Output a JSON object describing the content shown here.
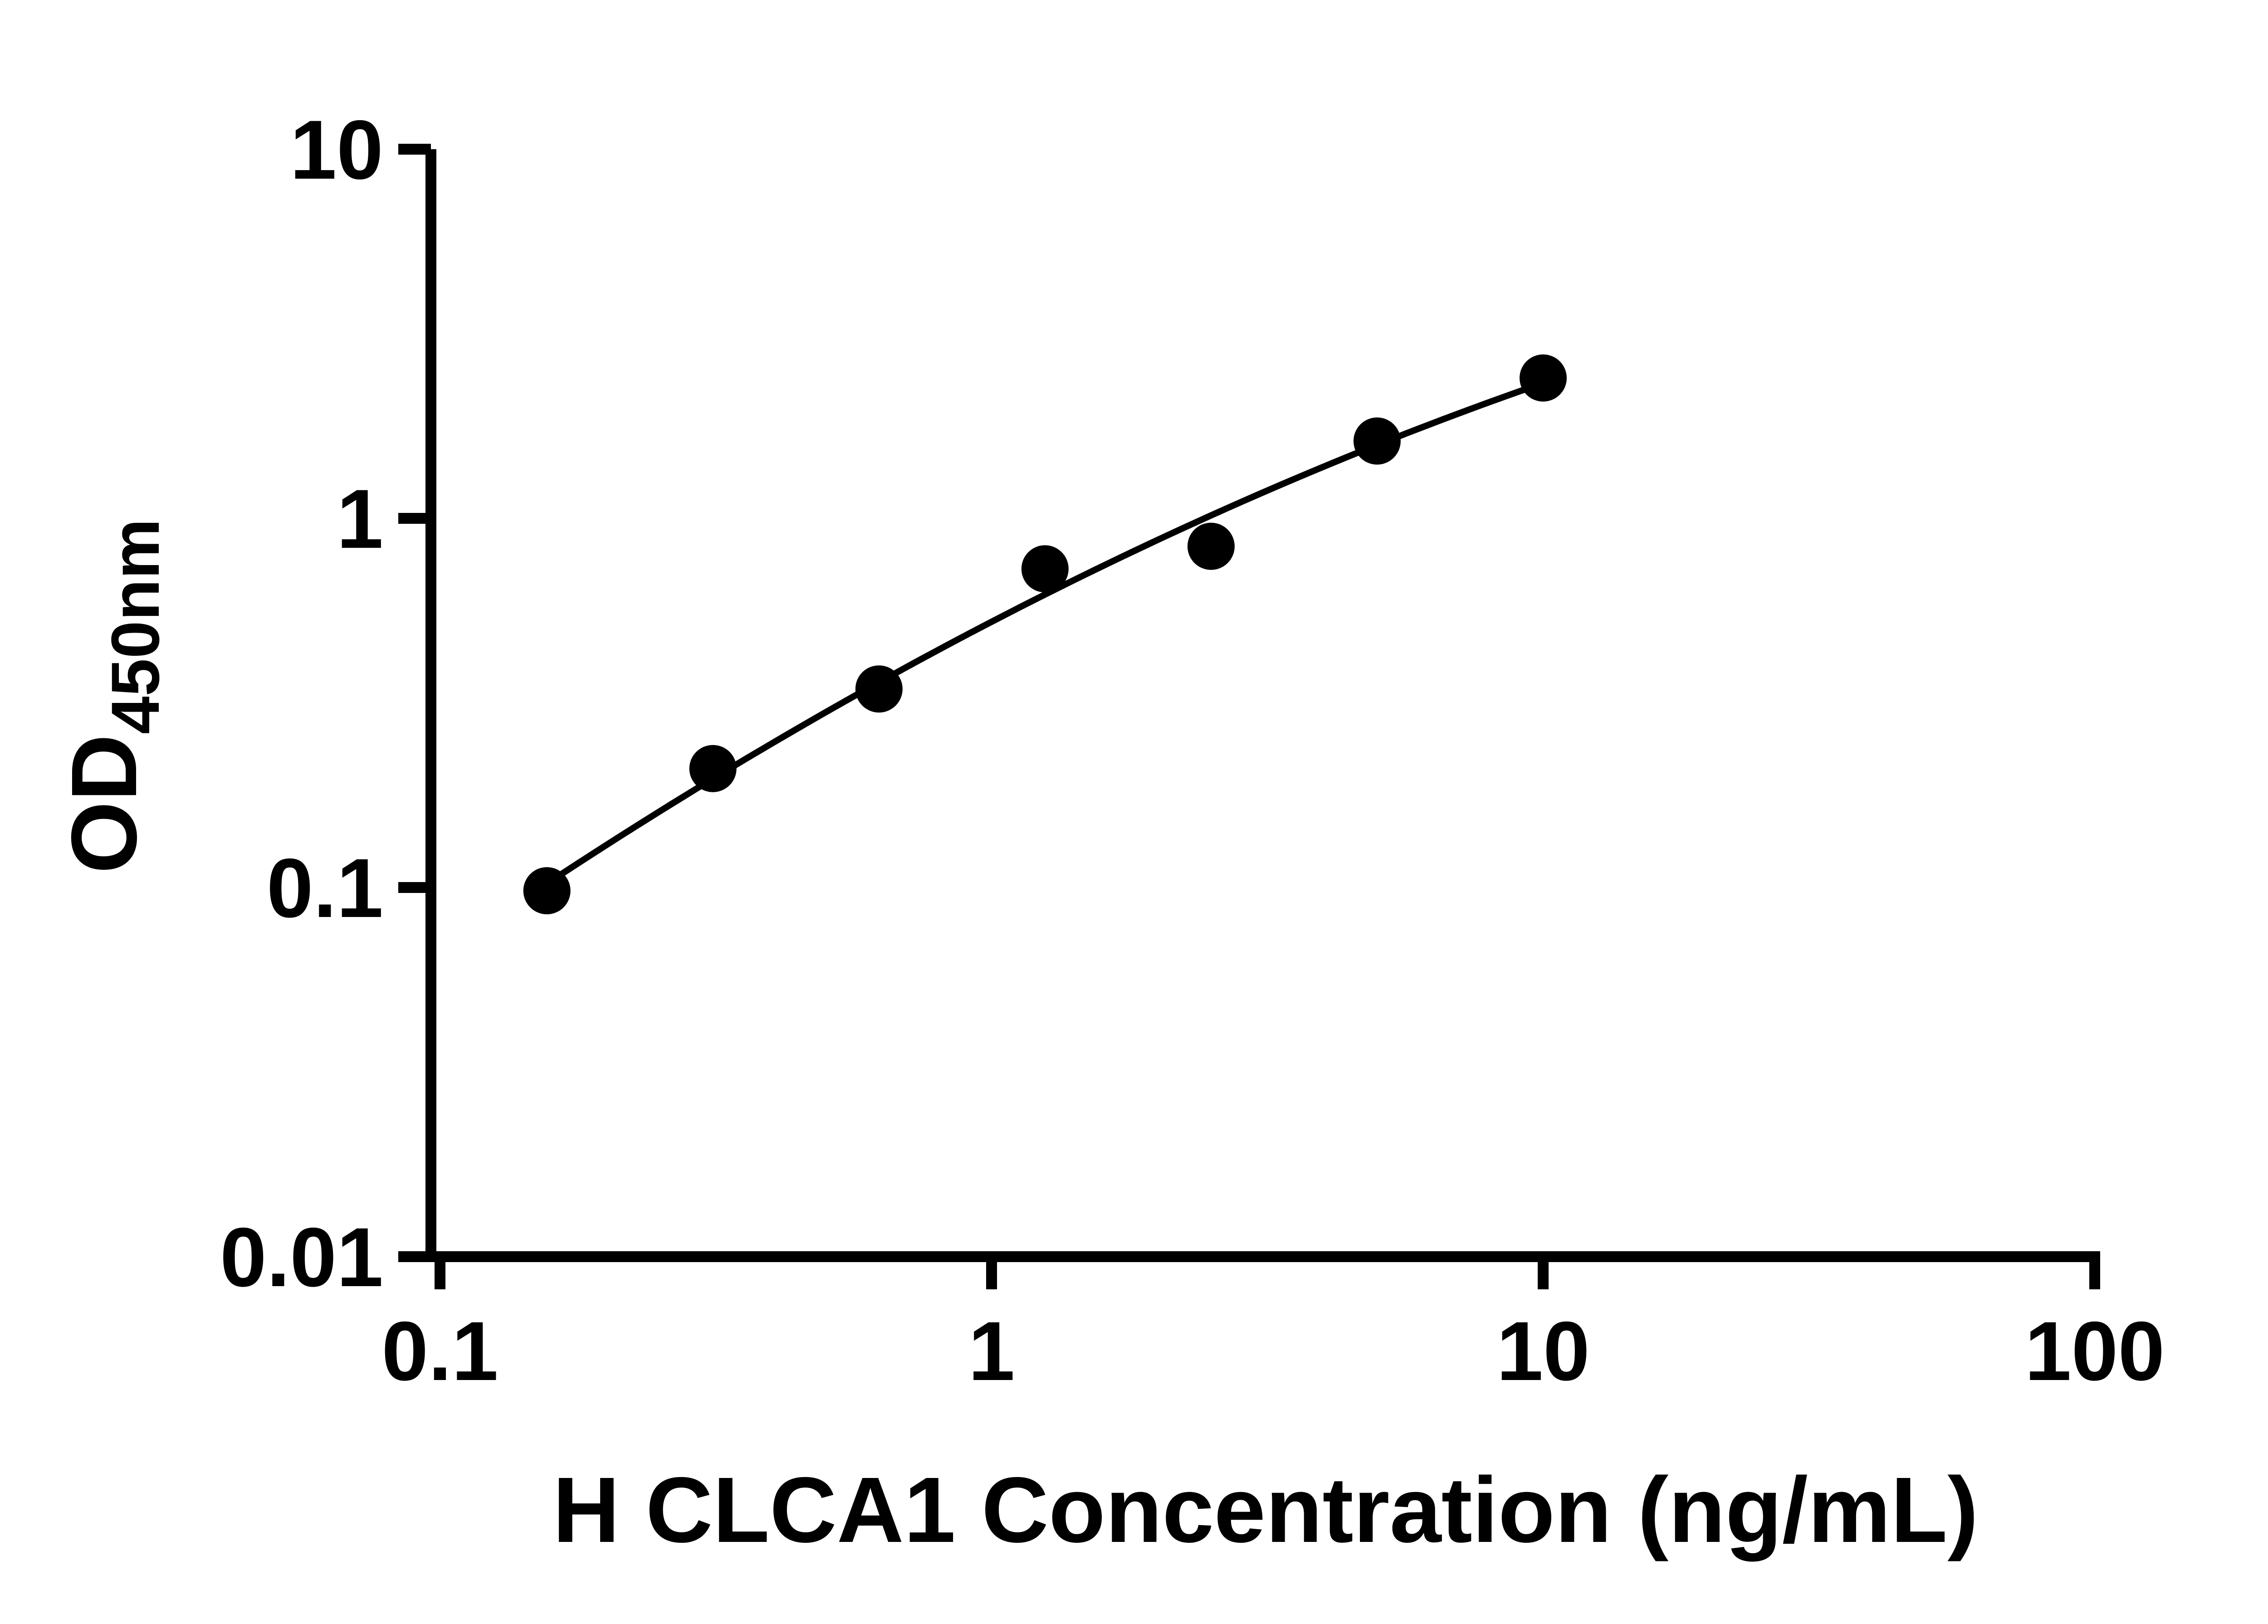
{
  "chart_data": {
    "type": "scatter",
    "title": "",
    "xlabel": "H CLCA1 Concentration (ng/mL)",
    "ylabel": "OD450nm",
    "ylabel_main": "OD",
    "ylabel_sub": "450nm",
    "x_scale": "log",
    "y_scale": "log",
    "xlim": [
      0.1,
      100
    ],
    "ylim": [
      0.01,
      10
    ],
    "x_ticks": [
      "0.1",
      "1",
      "10",
      "100"
    ],
    "y_ticks": [
      "10",
      "1",
      "0.1",
      "0.01"
    ],
    "grid": false,
    "legend": "none",
    "marker": "filled-circle",
    "marker_color": "#000000",
    "line_color": "#000000",
    "axis_color": "#000000",
    "background_color": "#ffffff",
    "fit": "smooth curve through standards (log-log)",
    "x": [
      0.15625,
      0.3125,
      0.625,
      1.25,
      2.5,
      5,
      10
    ],
    "y": [
      0.098,
      0.21,
      0.345,
      0.73,
      0.84,
      1.62,
      2.4
    ]
  }
}
